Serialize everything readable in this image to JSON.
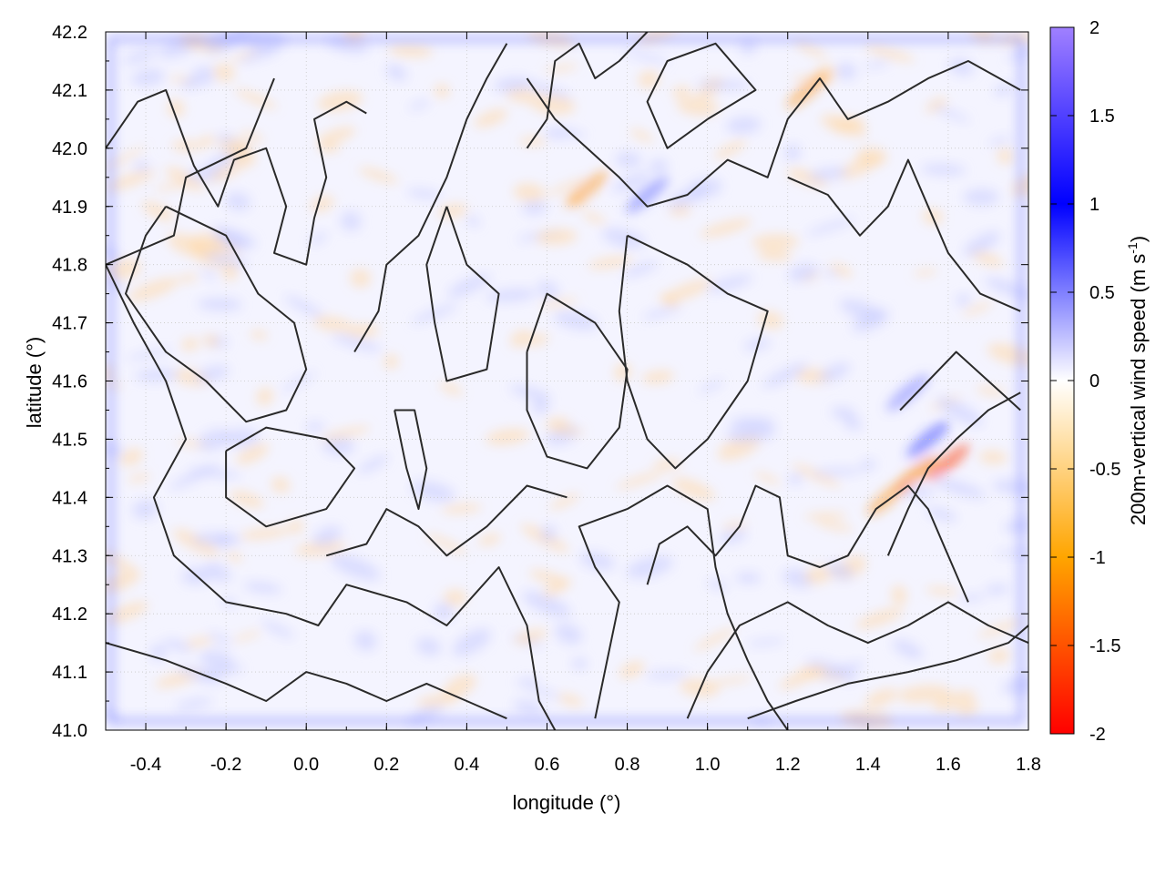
{
  "chart_data": {
    "type": "heatmap",
    "xlabel": "longitude (°)",
    "ylabel": "latitude (°)",
    "xlim": [
      -0.5,
      1.8
    ],
    "ylim": [
      41.0,
      42.2
    ],
    "x_ticks": [
      -0.4,
      -0.2,
      0.0,
      0.2,
      0.4,
      0.6,
      0.8,
      1.0,
      1.2,
      1.4,
      1.6,
      1.8
    ],
    "x_tick_labels": [
      "-0.4",
      "-0.2",
      "0.0",
      "0.2",
      "0.4",
      "0.6",
      "0.8",
      "1.0",
      "1.2",
      "1.4",
      "1.6",
      "1.8"
    ],
    "y_ticks": [
      41.0,
      41.1,
      41.2,
      41.3,
      41.4,
      41.5,
      41.6,
      41.7,
      41.8,
      41.9,
      42.0,
      42.1,
      42.2
    ],
    "y_tick_labels": [
      "41.0",
      "41.1",
      "41.2",
      "41.3",
      "41.4",
      "41.5",
      "41.6",
      "41.7",
      "41.8",
      "41.9",
      "42.0",
      "42.1",
      "42.2"
    ],
    "grid": true,
    "colorbar": {
      "label_main": "200m-vertical wind speed (m s",
      "label_sup": "-1",
      "label_close": ")",
      "range": [
        -2,
        2
      ],
      "ticks": [
        -2,
        -1.5,
        -1,
        -0.5,
        0,
        0.5,
        1,
        1.5,
        2
      ],
      "tick_labels": [
        "-2",
        "-1.5",
        "-1",
        "-0.5",
        "0",
        "0.5",
        "1",
        "1.5",
        "2"
      ],
      "stops": [
        {
          "v": -2,
          "color": "#ff0000"
        },
        {
          "v": -1,
          "color": "#ffa500"
        },
        {
          "v": 0,
          "color": "#ffffff"
        },
        {
          "v": 1,
          "color": "#0000ff"
        },
        {
          "v": 2,
          "color": "#a080ff"
        }
      ]
    },
    "contours": [
      [
        [
          -0.08,
          42.12
        ],
        [
          -0.15,
          42.0
        ],
        [
          -0.3,
          41.95
        ],
        [
          -0.33,
          41.85
        ],
        [
          -0.5,
          41.8
        ],
        [
          -0.43,
          41.7
        ],
        [
          -0.35,
          41.6
        ],
        [
          -0.3,
          41.5
        ],
        [
          -0.38,
          41.4
        ],
        [
          -0.33,
          41.3
        ],
        [
          -0.2,
          41.22
        ],
        [
          -0.05,
          41.2
        ],
        [
          0.03,
          41.18
        ],
        [
          0.1,
          41.25
        ],
        [
          0.25,
          41.22
        ],
        [
          0.35,
          41.18
        ],
        [
          0.48,
          41.28
        ],
        [
          0.55,
          41.18
        ],
        [
          0.58,
          41.05
        ],
        [
          0.62,
          41.0
        ]
      ],
      [
        [
          -0.5,
          42.0
        ],
        [
          -0.42,
          42.08
        ],
        [
          -0.35,
          42.1
        ],
        [
          -0.28,
          41.97
        ],
        [
          -0.22,
          41.9
        ],
        [
          -0.18,
          41.98
        ],
        [
          -0.1,
          42.0
        ],
        [
          -0.05,
          41.9
        ],
        [
          -0.08,
          41.82
        ],
        [
          0.0,
          41.8
        ],
        [
          0.02,
          41.88
        ],
        [
          0.05,
          41.95
        ],
        [
          0.02,
          42.05
        ],
        [
          0.1,
          42.08
        ],
        [
          0.15,
          42.06
        ]
      ],
      [
        [
          -0.35,
          41.9
        ],
        [
          -0.2,
          41.85
        ],
        [
          -0.12,
          41.75
        ],
        [
          -0.03,
          41.7
        ],
        [
          0.0,
          41.62
        ],
        [
          -0.05,
          41.55
        ],
        [
          -0.15,
          41.53
        ],
        [
          -0.25,
          41.6
        ],
        [
          -0.35,
          41.65
        ],
        [
          -0.45,
          41.75
        ],
        [
          -0.4,
          41.85
        ],
        [
          -0.35,
          41.9
        ]
      ],
      [
        [
          -0.2,
          41.48
        ],
        [
          -0.1,
          41.52
        ],
        [
          0.05,
          41.5
        ],
        [
          0.12,
          41.45
        ],
        [
          0.05,
          41.38
        ],
        [
          -0.1,
          41.35
        ],
        [
          -0.2,
          41.4
        ],
        [
          -0.2,
          41.48
        ]
      ],
      [
        [
          0.22,
          41.55
        ],
        [
          0.25,
          41.45
        ],
        [
          0.28,
          41.38
        ],
        [
          0.3,
          41.45
        ],
        [
          0.27,
          41.55
        ],
        [
          0.22,
          41.55
        ]
      ],
      [
        [
          0.35,
          41.9
        ],
        [
          0.4,
          41.8
        ],
        [
          0.48,
          41.75
        ],
        [
          0.45,
          41.62
        ],
        [
          0.35,
          41.6
        ],
        [
          0.32,
          41.7
        ],
        [
          0.3,
          41.8
        ],
        [
          0.35,
          41.9
        ]
      ],
      [
        [
          0.55,
          41.65
        ],
        [
          0.6,
          41.75
        ],
        [
          0.72,
          41.7
        ],
        [
          0.8,
          41.62
        ],
        [
          0.78,
          41.52
        ],
        [
          0.7,
          41.45
        ],
        [
          0.6,
          41.47
        ],
        [
          0.55,
          41.55
        ],
        [
          0.55,
          41.65
        ]
      ],
      [
        [
          0.8,
          41.85
        ],
        [
          0.95,
          41.8
        ],
        [
          1.05,
          41.75
        ],
        [
          1.15,
          41.72
        ],
        [
          1.1,
          41.6
        ],
        [
          1.0,
          41.5
        ],
        [
          0.92,
          41.45
        ],
        [
          0.85,
          41.5
        ],
        [
          0.8,
          41.6
        ],
        [
          0.78,
          41.72
        ],
        [
          0.8,
          41.85
        ]
      ],
      [
        [
          1.0,
          42.05
        ],
        [
          0.9,
          42.0
        ],
        [
          0.85,
          42.08
        ],
        [
          0.9,
          42.15
        ],
        [
          1.02,
          42.18
        ],
        [
          1.12,
          42.1
        ],
        [
          1.0,
          42.05
        ]
      ],
      [
        [
          0.55,
          42.12
        ],
        [
          0.62,
          42.05
        ],
        [
          0.7,
          42.0
        ],
        [
          0.78,
          41.95
        ],
        [
          0.85,
          41.9
        ],
        [
          0.95,
          41.92
        ],
        [
          1.05,
          41.98
        ],
        [
          1.15,
          41.95
        ],
        [
          1.2,
          42.05
        ],
        [
          1.28,
          42.12
        ],
        [
          1.35,
          42.05
        ],
        [
          1.45,
          42.08
        ],
        [
          1.55,
          42.12
        ],
        [
          1.65,
          42.15
        ],
        [
          1.78,
          42.1
        ]
      ],
      [
        [
          1.2,
          41.95
        ],
        [
          1.3,
          41.92
        ],
        [
          1.38,
          41.85
        ],
        [
          1.45,
          41.9
        ],
        [
          1.5,
          41.98
        ],
        [
          1.55,
          41.9
        ],
        [
          1.6,
          41.82
        ],
        [
          1.68,
          41.75
        ],
        [
          1.78,
          41.72
        ]
      ],
      [
        [
          0.85,
          41.25
        ],
        [
          0.88,
          41.32
        ],
        [
          0.95,
          41.35
        ],
        [
          1.02,
          41.3
        ],
        [
          1.08,
          41.35
        ],
        [
          1.12,
          41.42
        ],
        [
          1.18,
          41.4
        ],
        [
          1.2,
          41.3
        ],
        [
          1.28,
          41.28
        ],
        [
          1.35,
          41.3
        ],
        [
          1.42,
          41.38
        ],
        [
          1.5,
          41.42
        ],
        [
          1.55,
          41.38
        ],
        [
          1.6,
          41.3
        ],
        [
          1.65,
          41.22
        ]
      ],
      [
        [
          0.72,
          41.02
        ],
        [
          0.75,
          41.12
        ],
        [
          0.78,
          41.22
        ],
        [
          0.72,
          41.28
        ],
        [
          0.68,
          41.35
        ],
        [
          0.8,
          41.38
        ],
        [
          0.9,
          41.42
        ],
        [
          1.0,
          41.38
        ],
        [
          1.02,
          41.28
        ],
        [
          1.05,
          41.2
        ],
        [
          1.1,
          41.12
        ],
        [
          1.15,
          41.05
        ],
        [
          1.2,
          41.0
        ]
      ],
      [
        [
          0.95,
          41.02
        ],
        [
          1.0,
          41.1
        ],
        [
          1.08,
          41.18
        ],
        [
          1.2,
          41.22
        ],
        [
          1.3,
          41.18
        ],
        [
          1.4,
          41.15
        ],
        [
          1.5,
          41.18
        ],
        [
          1.6,
          41.22
        ],
        [
          1.7,
          41.18
        ],
        [
          1.8,
          41.15
        ]
      ],
      [
        [
          1.1,
          41.02
        ],
        [
          1.22,
          41.05
        ],
        [
          1.35,
          41.08
        ],
        [
          1.5,
          41.1
        ],
        [
          1.62,
          41.12
        ],
        [
          1.75,
          41.15
        ],
        [
          1.8,
          41.18
        ]
      ],
      [
        [
          1.48,
          41.55
        ],
        [
          1.55,
          41.6
        ],
        [
          1.62,
          41.65
        ],
        [
          1.7,
          41.6
        ],
        [
          1.78,
          41.55
        ]
      ],
      [
        [
          1.45,
          41.3
        ],
        [
          1.5,
          41.38
        ],
        [
          1.55,
          41.45
        ],
        [
          1.62,
          41.5
        ],
        [
          1.7,
          41.55
        ],
        [
          1.78,
          41.58
        ]
      ],
      [
        [
          0.05,
          41.3
        ],
        [
          0.15,
          41.32
        ],
        [
          0.2,
          41.38
        ],
        [
          0.28,
          41.35
        ],
        [
          0.35,
          41.3
        ],
        [
          0.45,
          41.35
        ],
        [
          0.55,
          41.42
        ],
        [
          0.65,
          41.4
        ]
      ],
      [
        [
          -0.5,
          41.15
        ],
        [
          -0.35,
          41.12
        ],
        [
          -0.2,
          41.08
        ],
        [
          -0.1,
          41.05
        ],
        [
          0.0,
          41.1
        ],
        [
          0.1,
          41.08
        ],
        [
          0.2,
          41.05
        ],
        [
          0.3,
          41.08
        ],
        [
          0.4,
          41.05
        ],
        [
          0.5,
          41.02
        ]
      ],
      [
        [
          0.12,
          41.65
        ],
        [
          0.18,
          41.72
        ],
        [
          0.2,
          41.8
        ],
        [
          0.28,
          41.85
        ],
        [
          0.35,
          41.95
        ],
        [
          0.4,
          42.05
        ],
        [
          0.45,
          42.12
        ],
        [
          0.5,
          42.18
        ]
      ],
      [
        [
          0.55,
          42.0
        ],
        [
          0.6,
          42.05
        ],
        [
          0.62,
          42.15
        ],
        [
          0.68,
          42.18
        ],
        [
          0.72,
          42.12
        ],
        [
          0.78,
          42.15
        ],
        [
          0.85,
          42.2
        ]
      ]
    ]
  }
}
